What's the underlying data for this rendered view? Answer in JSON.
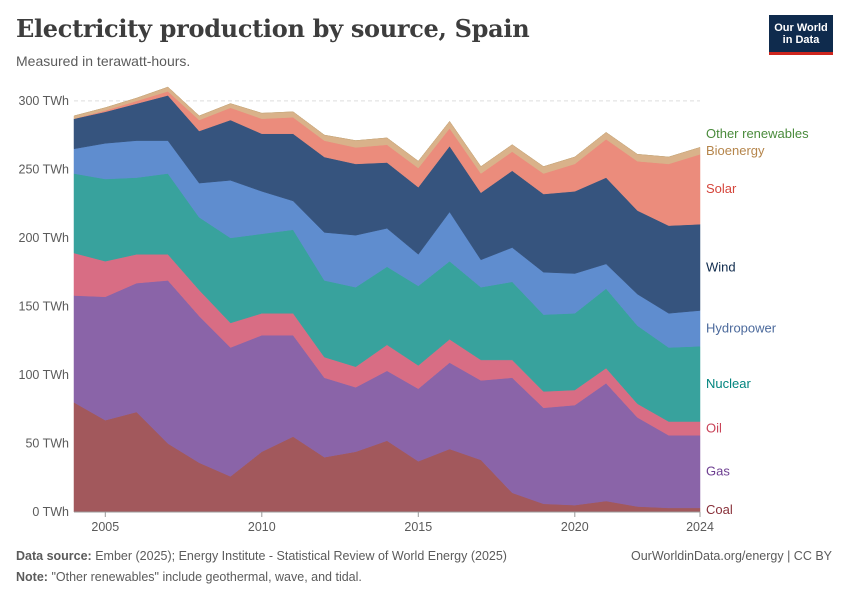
{
  "header": {
    "title": "Electricity production by source, Spain",
    "subtitle": "Measured in terawatt-hours.",
    "logo_line1": "Our World",
    "logo_line2": "in Data"
  },
  "footer": {
    "source_label": "Data source:",
    "source_text": "Ember (2025); Energy Institute - Statistical Review of World Energy (2025)",
    "credit": "OurWorldinData.org/energy | CC BY",
    "note_label": "Note:",
    "note_text": "\"Other renewables\" include geothermal, wave, and tidal."
  },
  "chart_data": {
    "type": "area",
    "stacked": true,
    "x": [
      2004,
      2005,
      2006,
      2007,
      2008,
      2009,
      2010,
      2011,
      2012,
      2013,
      2014,
      2015,
      2016,
      2017,
      2018,
      2019,
      2020,
      2021,
      2022,
      2023,
      2024
    ],
    "x_ticks": [
      2005,
      2010,
      2015,
      2020,
      2024
    ],
    "y_ticks": [
      0,
      50,
      100,
      150,
      200,
      250,
      300
    ],
    "y_tick_labels": [
      "0 TWh",
      "50 TWh",
      "100 TWh",
      "150 TWh",
      "200 TWh",
      "250 TWh",
      "300 TWh"
    ],
    "ylim": [
      0,
      305
    ],
    "unit": "TWh",
    "series": [
      {
        "name": "Coal",
        "color": "#a2585c",
        "label_color": "#883039",
        "values": [
          80,
          67,
          73,
          50,
          36,
          26,
          44,
          55,
          40,
          44,
          52,
          37,
          46,
          38,
          14,
          6,
          5,
          8,
          4,
          3,
          3
        ]
      },
      {
        "name": "Gas",
        "color": "#8a64a8",
        "label_color": "#6d3e91",
        "values": [
          78,
          90,
          94,
          119,
          107,
          94,
          85,
          74,
          58,
          47,
          51,
          53,
          63,
          58,
          84,
          70,
          73,
          86,
          65,
          53,
          53
        ]
      },
      {
        "name": "Oil",
        "color": "#d86d84",
        "label_color": "#c94358",
        "values": [
          31,
          26,
          21,
          19,
          19,
          18,
          16,
          16,
          15,
          15,
          19,
          17,
          17,
          15,
          13,
          12,
          11,
          11,
          10,
          10,
          10
        ]
      },
      {
        "name": "Nuclear",
        "color": "#38a29d",
        "label_color": "#00847e",
        "values": [
          58,
          60,
          56,
          59,
          53,
          62,
          58,
          61,
          56,
          58,
          57,
          58,
          57,
          53,
          57,
          56,
          56,
          58,
          57,
          54,
          55
        ]
      },
      {
        "name": "Hydropower",
        "color": "#5f8dcf",
        "label_color": "#4c6a9c",
        "values": [
          18,
          26,
          27,
          24,
          25,
          42,
          31,
          21,
          35,
          38,
          28,
          23,
          36,
          20,
          25,
          31,
          29,
          18,
          23,
          25,
          26
        ]
      },
      {
        "name": "Wind",
        "color": "#36547e",
        "label_color": "#0f2b4d",
        "values": [
          22,
          23,
          27,
          33,
          38,
          44,
          42,
          49,
          55,
          52,
          48,
          49,
          48,
          49,
          56,
          57,
          60,
          63,
          61,
          64,
          63
        ]
      },
      {
        "name": "Solar",
        "color": "#eb8c7c",
        "label_color": "#d5453b",
        "values": [
          0,
          1,
          2,
          3,
          8,
          9,
          11,
          12,
          12,
          12,
          13,
          14,
          13,
          14,
          14,
          15,
          20,
          28,
          36,
          45,
          51
        ]
      },
      {
        "name": "Bioenergy",
        "color": "#d9b28a",
        "label_color": "#b5854b",
        "values": [
          2,
          2,
          2,
          3,
          3,
          3,
          4,
          4,
          4,
          5,
          5,
          5,
          5,
          5,
          5,
          5,
          5,
          5,
          5,
          5,
          5
        ]
      },
      {
        "name": "Other renewables",
        "color": "#c8aa7e",
        "label_color": "#4a8b3c",
        "values": [
          0,
          0,
          0,
          0,
          0,
          0,
          0,
          0,
          0,
          0,
          0,
          0,
          0,
          0,
          0,
          0,
          0,
          0,
          0,
          0,
          0
        ]
      }
    ]
  }
}
